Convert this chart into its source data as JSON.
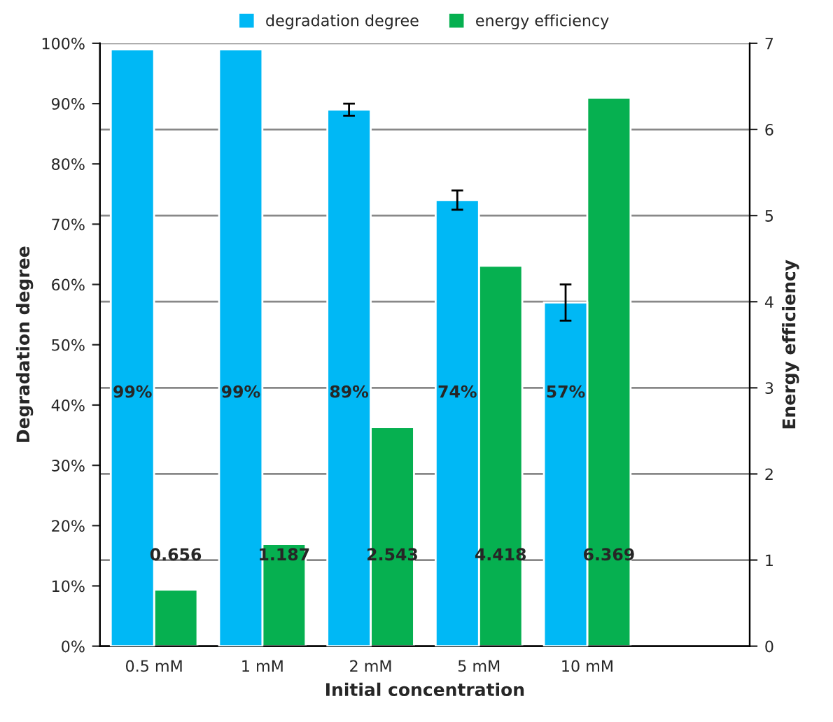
{
  "chart_data": {
    "type": "bar",
    "xlabel": "Initial concentration",
    "ylabel": "Degradation degree",
    "y2label": "Energy efficiency",
    "categories": [
      "0.5 mM",
      "1 mM",
      "2 mM",
      "5 mM",
      "10 mM",
      null
    ],
    "series": [
      {
        "name": "degradation degree",
        "color": "#00b8f5",
        "values": [
          99,
          99,
          89,
          74,
          57,
          null
        ],
        "errors": [
          null,
          null,
          1,
          1.6,
          3,
          null
        ],
        "value_labels": [
          "99%",
          "99%",
          "89%",
          "74%",
          "57%",
          null
        ]
      },
      {
        "name": "energy efficiency",
        "color": "#06b050",
        "axis": "y2",
        "values": [
          0.656,
          1.187,
          2.543,
          4.418,
          6.369,
          null
        ],
        "data_labels": true
      }
    ],
    "ylim": [
      0,
      100
    ],
    "yticks": [
      {
        "value": 0,
        "label": "0%"
      },
      {
        "value": 10,
        "label": "10%"
      },
      {
        "value": 20,
        "label": "20%"
      },
      {
        "value": 30,
        "label": "30%"
      },
      {
        "value": 40,
        "label": "40%"
      },
      {
        "value": 50,
        "label": "50%"
      },
      {
        "value": 60,
        "label": "60%"
      },
      {
        "value": 70,
        "label": "70%"
      },
      {
        "value": 80,
        "label": "80%"
      },
      {
        "value": 90,
        "label": "90%"
      },
      {
        "value": 100,
        "label": "100%"
      }
    ],
    "y2lim": [
      0,
      7
    ],
    "y2ticks": [
      0,
      1,
      2,
      3,
      4,
      5,
      6,
      7
    ],
    "grid": "y2",
    "legend": "top"
  }
}
